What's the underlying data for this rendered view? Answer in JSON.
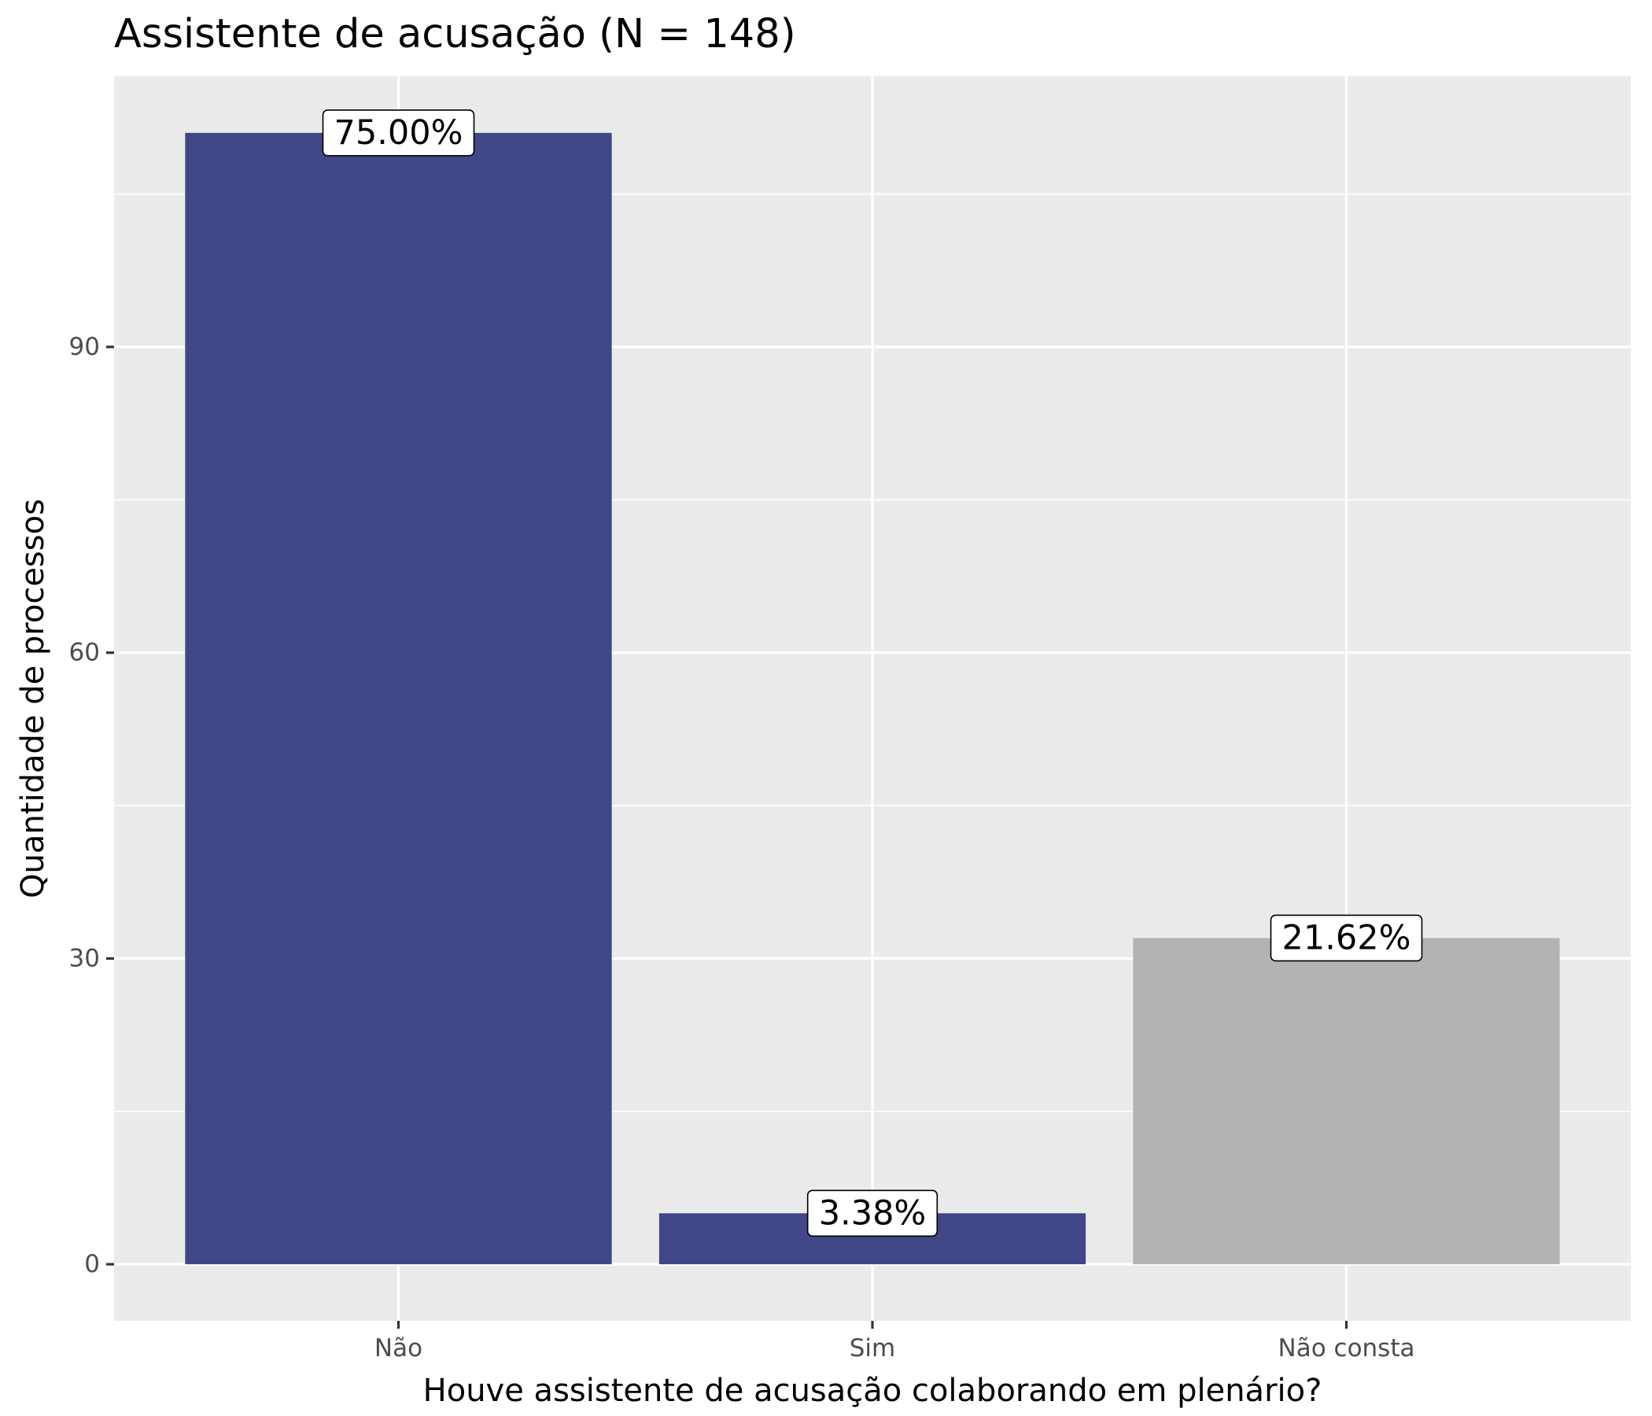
{
  "chart_data": {
    "type": "bar",
    "title": "Assistente de acusação (N = 148)",
    "xlabel": "Houve assistente de acusação colaborando em plenário?",
    "ylabel": "Quantidade de processos",
    "categories": [
      "Não",
      "Sim",
      "Não consta"
    ],
    "values": [
      111,
      5,
      32
    ],
    "labels": [
      "75.00%",
      "3.38%",
      "21.62%"
    ],
    "bar_colors": [
      "#414687",
      "#414687",
      "#b3b3b3"
    ],
    "yticks": [
      0,
      30,
      60,
      90
    ],
    "ylim": [
      -5.55,
      116.55
    ],
    "grid": true,
    "legend": "none",
    "panel_background": "#ebebeb",
    "gridline_color": "#ffffff"
  }
}
